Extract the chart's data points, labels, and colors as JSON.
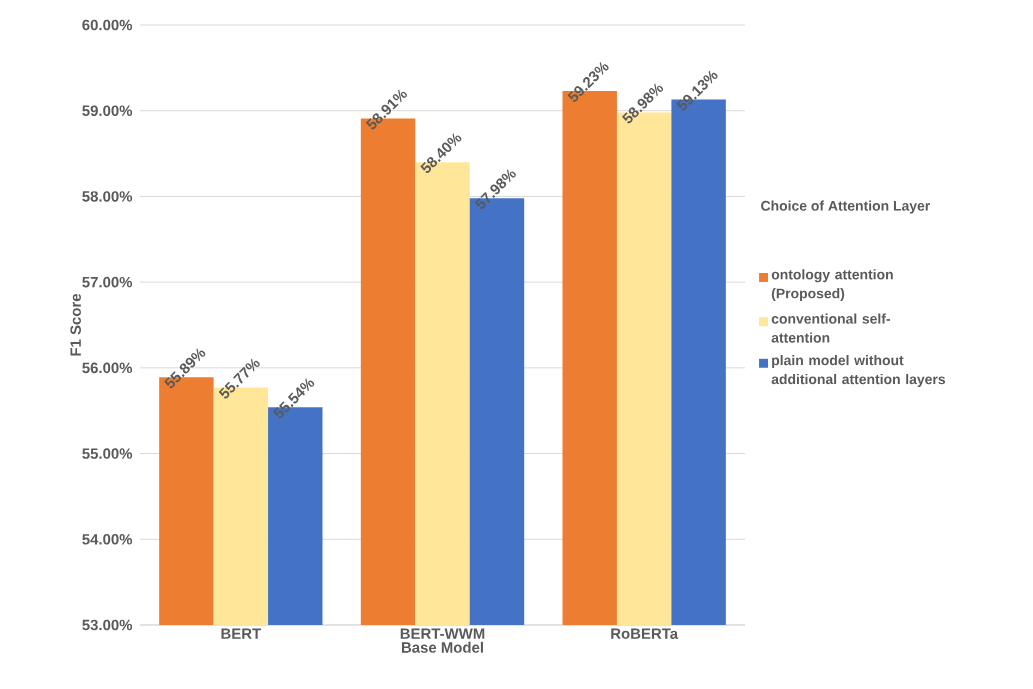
{
  "chart_data": {
    "type": "bar",
    "xlabel": "Base Model",
    "ylabel": "F1 Score",
    "legend_title": "Choice of Attention Layer",
    "categories": [
      "BERT",
      "BERT-WWM",
      "RoBERTa"
    ],
    "series": [
      {
        "name": "ontology attention (Proposed)",
        "color": "#ed7d31",
        "values": [
          55.89,
          58.91,
          59.23
        ],
        "value_labels": [
          "55.89%",
          "58.91%",
          "59.23%"
        ]
      },
      {
        "name": "conventional self-attention",
        "color": "#ffe699",
        "values": [
          55.77,
          58.4,
          58.98
        ],
        "value_labels": [
          "55.77%",
          "58.40%",
          "58.98%"
        ]
      },
      {
        "name": "plain model without additional attention layers",
        "color": "#4472c4",
        "values": [
          55.54,
          57.98,
          59.13
        ],
        "value_labels": [
          "55.54%",
          "57.98%",
          "59.13%"
        ]
      }
    ],
    "ylim": [
      53,
      60
    ],
    "yticks": [
      {
        "value": 53,
        "label": "53.00%"
      },
      {
        "value": 54,
        "label": "54.00%"
      },
      {
        "value": 55,
        "label": "55.00%"
      },
      {
        "value": 56,
        "label": "56.00%"
      },
      {
        "value": 57,
        "label": "57.00%"
      },
      {
        "value": 58,
        "label": "58.00%"
      },
      {
        "value": 59,
        "label": "59.00%"
      },
      {
        "value": 60,
        "label": "60.00%"
      }
    ],
    "grid": "y",
    "legend": "right"
  }
}
